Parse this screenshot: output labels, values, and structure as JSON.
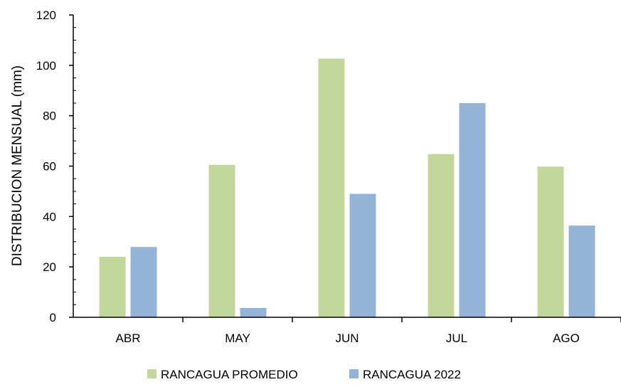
{
  "chart_data": {
    "type": "bar",
    "categories": [
      "ABR",
      "MAY",
      "JUN",
      "JUL",
      "AGO"
    ],
    "series": [
      {
        "name": "RANCAGUA PROMEDIO",
        "values": [
          24.0,
          60.5,
          102.7,
          64.8,
          59.8
        ],
        "color": "#c4d79b"
      },
      {
        "name": "RANCAGUA 2022",
        "values": [
          27.9,
          3.7,
          49.0,
          85.0,
          36.4
        ],
        "color": "#95b3d7"
      }
    ],
    "ylabel": "DISTRIBUCION MENSUAL (mm)",
    "xlabel": "",
    "ylim": [
      0,
      120
    ],
    "yticks": [
      0,
      20,
      40,
      60,
      80,
      100,
      120
    ],
    "grid": false,
    "legend_position": "bottom"
  }
}
